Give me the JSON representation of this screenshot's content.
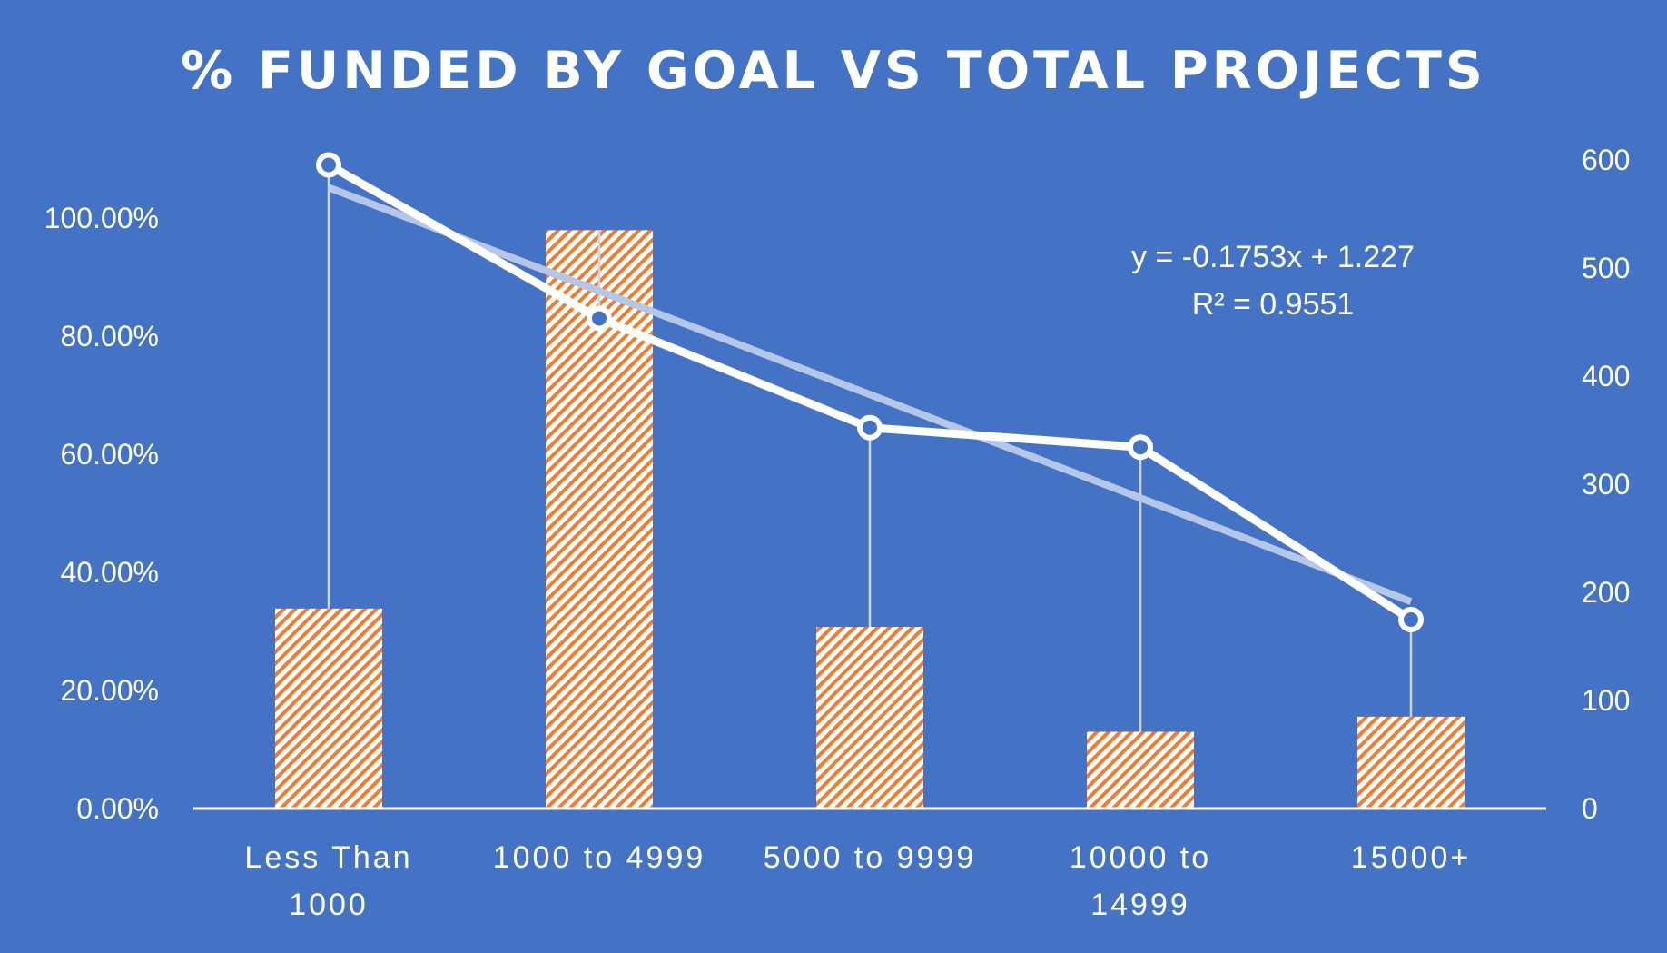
{
  "chart_data": {
    "type": "bar+line",
    "title": "% FUNDED BY GOAL VS TOTAL PROJECTS",
    "categories": [
      "Less Than 1000",
      "1000 to 4999",
      "5000 to 9999",
      "10000 to 14999",
      "15000+"
    ],
    "series": [
      {
        "type": "bar",
        "axis": "right",
        "values": [
          185,
          535,
          168,
          71,
          85
        ],
        "color": "#ED7D31",
        "pattern": "diagonal-hatch"
      },
      {
        "type": "line",
        "axis": "left",
        "values": [
          1.09,
          0.83,
          0.645,
          0.612,
          0.32
        ],
        "color": "#FFFFFF",
        "marker": "circle-hollow"
      }
    ],
    "trendline": {
      "type": "linear",
      "axis": "left",
      "color": "#B4C7E7",
      "equation": "y = -0.1753x + 1.227",
      "r_squared": "R² = 0.9551",
      "slope": -0.1753,
      "intercept": 1.227
    },
    "left_axis": {
      "min": 0,
      "max": 1.0,
      "ticks": [
        "0.00%",
        "20.00%",
        "40.00%",
        "60.00%",
        "80.00%",
        "100.00%"
      ],
      "values": [
        0,
        0.2,
        0.4,
        0.6,
        0.8,
        1.0
      ]
    },
    "right_axis": {
      "min": 0,
      "max": 600,
      "ticks": [
        "0",
        "100",
        "200",
        "300",
        "400",
        "500",
        "600"
      ],
      "values": [
        0,
        100,
        200,
        300,
        400,
        500,
        600
      ]
    },
    "drop_lines": true,
    "grid": false,
    "legend": "none"
  }
}
